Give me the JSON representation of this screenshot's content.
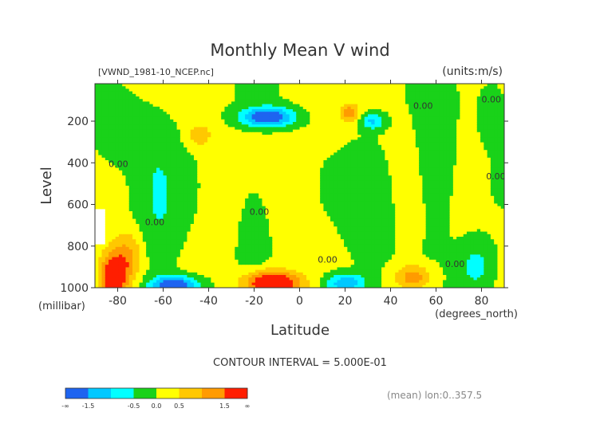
{
  "chart_data": {
    "type": "heatmap",
    "title": "Monthly Mean V wind",
    "dataset_label": "[VWND_1981-10_NCEP.nc]",
    "units_label": "(units:m/s)",
    "xlabel": "Latitude",
    "x_unit_label": "(degrees_north)",
    "ylabel": "Level",
    "y_unit_label": "(millibar)",
    "xlim": [
      -90,
      90
    ],
    "ylim": [
      1000,
      10
    ],
    "x_ticks": [
      -80,
      -60,
      -40,
      -20,
      0,
      20,
      40,
      60,
      80
    ],
    "y_ticks": [
      200,
      400,
      600,
      800,
      1000
    ],
    "contour_interval_label": "CONTOUR INTERVAL = 5.000E-01",
    "footer_label": "(mean) lon:0..357.5",
    "contour_labels": [
      "0.00",
      "0.00",
      "0.00",
      "0.00",
      "0.00",
      "0.00",
      "0.00",
      "0.00"
    ],
    "colorbar": {
      "tick_labels": [
        "-∞",
        "-1.5",
        "-0.5",
        "0.0",
        "0.5",
        "1.5",
        "∞"
      ],
      "bins": [
        {
          "range": [
            -999,
            -1.5
          ],
          "color": "#1e64f0"
        },
        {
          "range": [
            -1.5,
            -1.0
          ],
          "color": "#00c8ff"
        },
        {
          "range": [
            -1.0,
            -0.5
          ],
          "color": "#00ffff"
        },
        {
          "range": [
            -0.5,
            0.0
          ],
          "color": "#19d219"
        },
        {
          "range": [
            0.0,
            0.5
          ],
          "color": "#ffff00"
        },
        {
          "range": [
            0.5,
            1.0
          ],
          "color": "#ffc800"
        },
        {
          "range": [
            1.0,
            1.5
          ],
          "color": "#ff9b00"
        },
        {
          "range": [
            1.5,
            999
          ],
          "color": "#ff1e00"
        }
      ]
    },
    "field_features": [
      {
        "name": "neg-core-upper",
        "lat": -14,
        "level": 180,
        "value": -2.0
      },
      {
        "name": "pos-core-lower",
        "lat": -12,
        "level": 960,
        "value": 2.0
      },
      {
        "name": "neg-core-lower-south",
        "lat": -55,
        "level": 980,
        "value": -2.0
      },
      {
        "name": "neg-core-lower-north",
        "lat": 20,
        "level": 970,
        "value": -1.0
      },
      {
        "name": "pos-core-lower-mid",
        "lat": 50,
        "level": 940,
        "value": 1.0
      },
      {
        "name": "pos-core-upper-south",
        "lat": -44,
        "level": 270,
        "value": 0.7
      },
      {
        "name": "pos-core-upper-north",
        "lat": 22,
        "level": 150,
        "value": 1.0
      },
      {
        "name": "neg-core-upper-north",
        "lat": 32,
        "level": 200,
        "value": -0.7
      },
      {
        "name": "neg-core-lower-polar",
        "lat": 72,
        "level": 980,
        "value": -0.8
      }
    ]
  }
}
